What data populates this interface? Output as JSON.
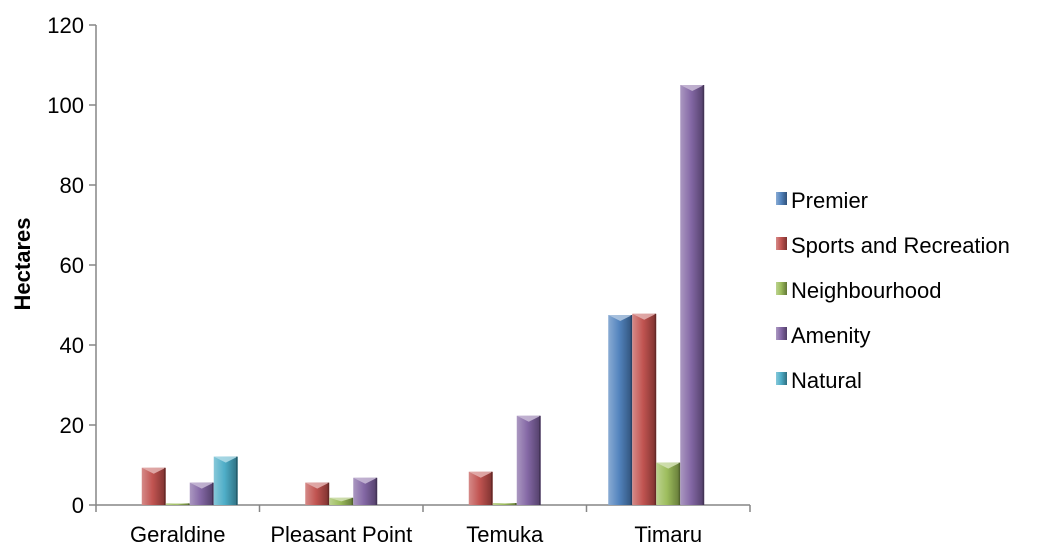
{
  "chart_data": {
    "type": "bar",
    "title": "",
    "xlabel": "",
    "ylabel": "Hectares",
    "ylim": [
      0,
      120
    ],
    "yticks": [
      0,
      20,
      40,
      60,
      80,
      100,
      120
    ],
    "grid": false,
    "legend_position": "right",
    "categories": [
      "Geraldine",
      "Pleasant Point",
      "Temuka",
      "Timaru"
    ],
    "series": [
      {
        "name": "Premier",
        "color": "#4a7ebb",
        "values": [
          0,
          0,
          0,
          47.5
        ]
      },
      {
        "name": "Sports and Recreation",
        "color": "#be4b48",
        "values": [
          9.3,
          5.6,
          8.3,
          47.8
        ]
      },
      {
        "name": "Neighbourhood",
        "color": "#98b954",
        "values": [
          0.4,
          1.8,
          0.5,
          10.6
        ]
      },
      {
        "name": "Amenity",
        "color": "#7d60a0",
        "values": [
          5.6,
          6.8,
          22.3,
          105
        ]
      },
      {
        "name": "Natural",
        "color": "#46aac5",
        "values": [
          12.1,
          0,
          0,
          0
        ]
      }
    ]
  }
}
